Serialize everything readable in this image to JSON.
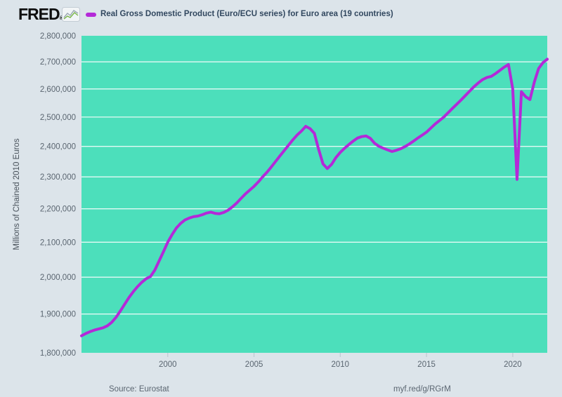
{
  "header": {
    "logo_text": "FRED",
    "logo_reg": "®",
    "legend": {
      "swatch_color": "#b429d8",
      "label": "Real Gross Domestic Product (Euro/ECU series) for Euro area (19 countries)"
    }
  },
  "footer": {
    "source": "Source: Eurostat",
    "link": "myf.red/g/RGrM"
  },
  "chart_data": {
    "type": "line",
    "title": "Real Gross Domestic Product (Euro/ECU series) for Euro area (19 countries)",
    "ylabel": "Millions of Chained 2010 Euros",
    "xlabel": "",
    "y_scale": "log",
    "ylim": [
      1800000,
      2800000
    ],
    "xlim": [
      1995.0,
      2022.0
    ],
    "y_ticks": [
      1800000,
      1900000,
      2000000,
      2100000,
      2200000,
      2300000,
      2400000,
      2500000,
      2600000,
      2700000,
      2800000
    ],
    "x_ticks": [
      2000,
      2005,
      2010,
      2015,
      2020
    ],
    "frequency": "quarterly",
    "x_start": 1995.0,
    "x_step": 0.25,
    "grid": true,
    "legend_position": "top",
    "page_bg": "#dce4ea",
    "plot_bg": "#4cdfbb",
    "grid_color": "rgba(255,255,255,0.85)",
    "tick_color": "#b9c4cd",
    "label_color": "#5a6570",
    "series": [
      {
        "name": "Real Gross Domestic Product (Euro/ECU series) for Euro area (19 countries)",
        "color": "#b429d8",
        "values": [
          1843000,
          1849000,
          1854000,
          1858000,
          1861000,
          1864000,
          1869000,
          1878000,
          1891000,
          1908000,
          1926000,
          1944000,
          1960000,
          1974000,
          1986000,
          1996000,
          2002000,
          2020000,
          2046000,
          2072000,
          2100000,
          2122000,
          2142000,
          2156000,
          2166000,
          2172000,
          2176000,
          2178000,
          2182000,
          2187000,
          2190000,
          2186000,
          2185000,
          2189000,
          2196000,
          2206000,
          2218000,
          2232000,
          2246000,
          2258000,
          2270000,
          2284000,
          2300000,
          2315000,
          2332000,
          2350000,
          2368000,
          2386000,
          2404000,
          2422000,
          2438000,
          2452000,
          2468000,
          2460000,
          2444000,
          2390000,
          2342000,
          2327000,
          2341000,
          2363000,
          2380000,
          2394000,
          2406000,
          2418000,
          2428000,
          2433000,
          2435000,
          2427000,
          2410000,
          2400000,
          2394000,
          2388000,
          2383000,
          2387000,
          2392000,
          2399000,
          2408000,
          2418000,
          2428000,
          2438000,
          2448000,
          2462000,
          2476000,
          2488000,
          2500000,
          2515000,
          2530000,
          2545000,
          2560000,
          2576000,
          2592000,
          2608000,
          2622000,
          2634000,
          2642000,
          2646000,
          2656000,
          2668000,
          2680000,
          2690000,
          2600000,
          2292000,
          2590000,
          2572000,
          2562000,
          2625000,
          2675000,
          2697000,
          2710000
        ]
      }
    ]
  }
}
